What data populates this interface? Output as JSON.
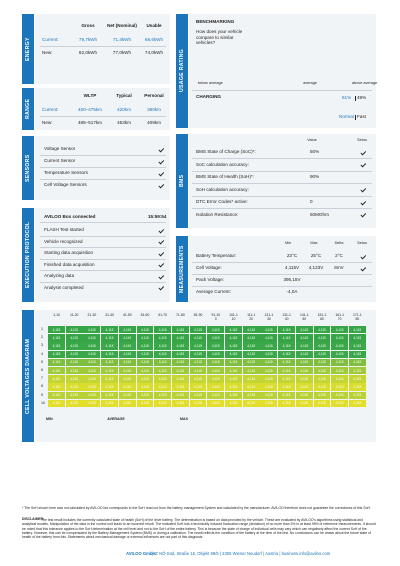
{
  "energy": {
    "label": "ENERGY",
    "headers": [
      "Gross",
      "Net (Nominal)",
      "Usable"
    ],
    "rows": [
      {
        "label": "Current:",
        "values": [
          "79,7kWh",
          "71,4kWh",
          "68,6kWh"
        ]
      },
      {
        "label": "New:",
        "values": [
          "82,0kWh",
          "77,0kWh",
          "74,0kWh"
        ]
      }
    ]
  },
  "range": {
    "label": "RANGE",
    "headers": [
      "WLTP",
      "Typical",
      "Personal"
    ],
    "rows": [
      {
        "label": "Current:",
        "values": [
          "450–475km",
          "420km",
          "380km"
        ]
      },
      {
        "label": "New:",
        "values": [
          "485–517km",
          "453km",
          "409km"
        ]
      }
    ]
  },
  "usage_rating": {
    "label": "USAGE RATING",
    "benchmark_title": "BENCHMARKING",
    "question": "How does your vehicle compare to similar vehicles?",
    "axis_labels": [
      "below average",
      "average",
      "above average"
    ],
    "charging_title": "CHARGING",
    "charging_values": [
      "51%",
      "49%"
    ],
    "charging_modes": [
      "Normal",
      "Fast"
    ]
  },
  "sensors": {
    "label": "SENSORS",
    "items": [
      "Voltage Sensor",
      "Current Sensor",
      "Temperature Sensors",
      "Cell Voltage Sensors"
    ]
  },
  "bms": {
    "label": "BMS",
    "headers": [
      "Value",
      "Setus"
    ],
    "rows": [
      {
        "label": "BMS State of Charge (SoC)*:",
        "value": "50%",
        "ok": true
      },
      {
        "label": "SoC calculation accuracy:",
        "ok": true
      },
      {
        "label": "BMS State of Health (SoH)*:",
        "value": "90%",
        "ok": false
      },
      {
        "label": "SoH calculation accuracy:",
        "ok": true
      },
      {
        "label": "DTC Error Codes* active:",
        "value": "0",
        "ok": true
      },
      {
        "label": "Isolation Resistance:",
        "value": "50MOhm",
        "ok": true
      }
    ]
  },
  "execution": {
    "label": "EXECUTION PROTOCOL",
    "header": "AVILOO Box connected",
    "time": "15:59:54",
    "items": [
      "FLASH Test started",
      "Vehicle recognized",
      "Starting data acquisition",
      "Finished data acquisition",
      "Analyzing data",
      "Analysis completed"
    ]
  },
  "measurements": {
    "label": "MEASUREMENTS",
    "headers": [
      "Min",
      "Max",
      "Delta",
      "Setus"
    ],
    "rows": [
      {
        "label": "Battery Temperatur:",
        "values": [
          "23°C",
          "25°C",
          "2°C"
        ],
        "ok": true
      },
      {
        "label": "Cell Voltage:",
        "values": [
          "4,115V",
          "4,123V",
          "8mV"
        ],
        "ok": true
      },
      {
        "label": "Pack Voltage:",
        "values": [
          "395,15V"
        ],
        "ok": false
      },
      {
        "label": "Average Current:",
        "values": [
          "-4,0A"
        ],
        "ok": false
      }
    ]
  },
  "cells": {
    "label": "CELL VOLTAGES DIAGRAM",
    "columns": [
      "1-10",
      "11-20",
      "21-30",
      "31-40",
      "41-50",
      "51-60",
      "61-70",
      "71-80",
      "81-90",
      "91-100",
      "101-110",
      "111-120",
      "121-130",
      "131-140",
      "141-150",
      "151-160",
      "161-170",
      "171-180"
    ],
    "row_labels": [
      "1",
      "2",
      "3",
      "4",
      "5",
      "6",
      "7",
      "8",
      "9",
      "10"
    ],
    "row_colors": [
      "#35a546",
      "#35a546",
      "#3aa848",
      "#3aa848",
      "#7fbf3f",
      "#9fca3a",
      "#c4d634",
      "#d9dd2e",
      "#b8d236",
      "#e2df2c"
    ],
    "value": "4,115",
    "legend": [
      "MIN",
      "AVERAGE",
      "MAX"
    ]
  },
  "footnote": "* The SoH shown here was not calculated by AVILOO but corresponds to the SoH read out from the battery management System and calculated by the manufacturer. AVILOO therefore does not guarantee the correctness of this SoH.",
  "disclaimer_title": "DISCLAIMER:",
  "disclaimer": "The test result includes the currently calculated state of health (SoH) of the drive battery. The determination is based on data provided by the vehicle. These are evaluated by AVILOO's algorithms using statistical and analytical models. Manipulation of the data in the control unit leads to an incorrect result. The indicated SoH has a technically induced fluctuation range (deviation) of no more than 3% in at least 95% of reference measurements. It should be noted that this tolerance applies to the SoH determination at the cell level and not to the SoH of the entire battery. This is because the state of charge of individual cells may vary which can negatively affect the current SoH of the battery. However, this can be compensated by the Battery Management System (BMS) or during a calibration. The result reflects the condition of the battery at the time of the test. No conclusions can be drawn about the future state of health of the battery from this. Statements about mechanical damage or external influences are not part of this diagnosis.",
  "footer": {
    "company": "AVILOO GmbH",
    "address": "| IZ NÖ-Süd, Straße 16, Objekt 69/5 | 2355 Wiener Neudorf | Austria | business.info@aviloo.com"
  }
}
